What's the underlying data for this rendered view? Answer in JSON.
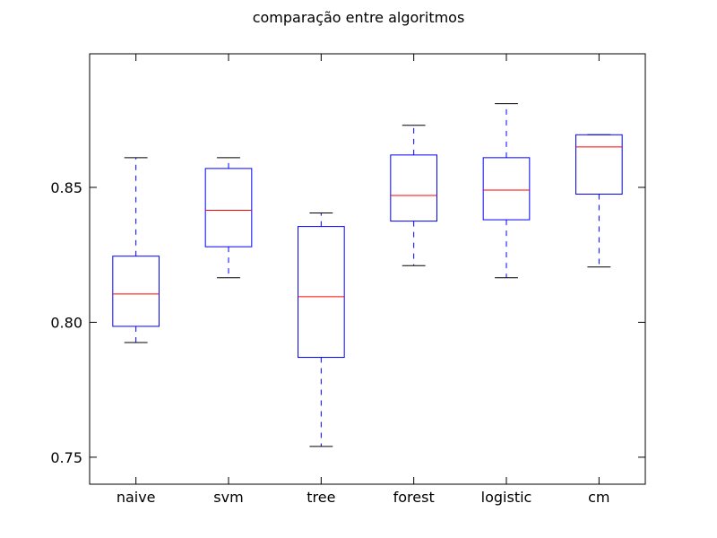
{
  "chart_data": {
    "type": "box",
    "title": "comparação entre algoritmos",
    "xlabel": "",
    "ylabel": "",
    "ylim": [
      0.74,
      0.8995
    ],
    "yticks": [
      0.75,
      0.8,
      0.85
    ],
    "ytick_labels": [
      "0.75",
      "0.80",
      "0.85"
    ],
    "categories": [
      "naive",
      "svm",
      "tree",
      "forest",
      "logistic",
      "cm"
    ],
    "boxes": [
      {
        "label": "naive",
        "whislo": 0.7925,
        "q1": 0.7985,
        "median": 0.8105,
        "q3": 0.8245,
        "whishi": 0.861
      },
      {
        "label": "svm",
        "whislo": 0.8165,
        "q1": 0.828,
        "median": 0.8415,
        "q3": 0.857,
        "whishi": 0.861
      },
      {
        "label": "tree",
        "whislo": 0.754,
        "q1": 0.787,
        "median": 0.8095,
        "q3": 0.8355,
        "whishi": 0.8405
      },
      {
        "label": "forest",
        "whislo": 0.821,
        "q1": 0.8375,
        "median": 0.847,
        "q3": 0.862,
        "whishi": 0.873
      },
      {
        "label": "logistic",
        "whislo": 0.8165,
        "q1": 0.838,
        "median": 0.849,
        "q3": 0.861,
        "whishi": 0.881
      },
      {
        "label": "cm",
        "whislo": 0.8205,
        "q1": 0.8475,
        "median": 0.865,
        "q3": 0.8695,
        "whishi": 0.8695
      }
    ],
    "grid": false,
    "colors": {
      "box": "#0000ff",
      "whisker": "#0000ff",
      "median": "#ff0000",
      "cap": "#000000",
      "axes": "#000000",
      "background": "#ffffff"
    }
  }
}
